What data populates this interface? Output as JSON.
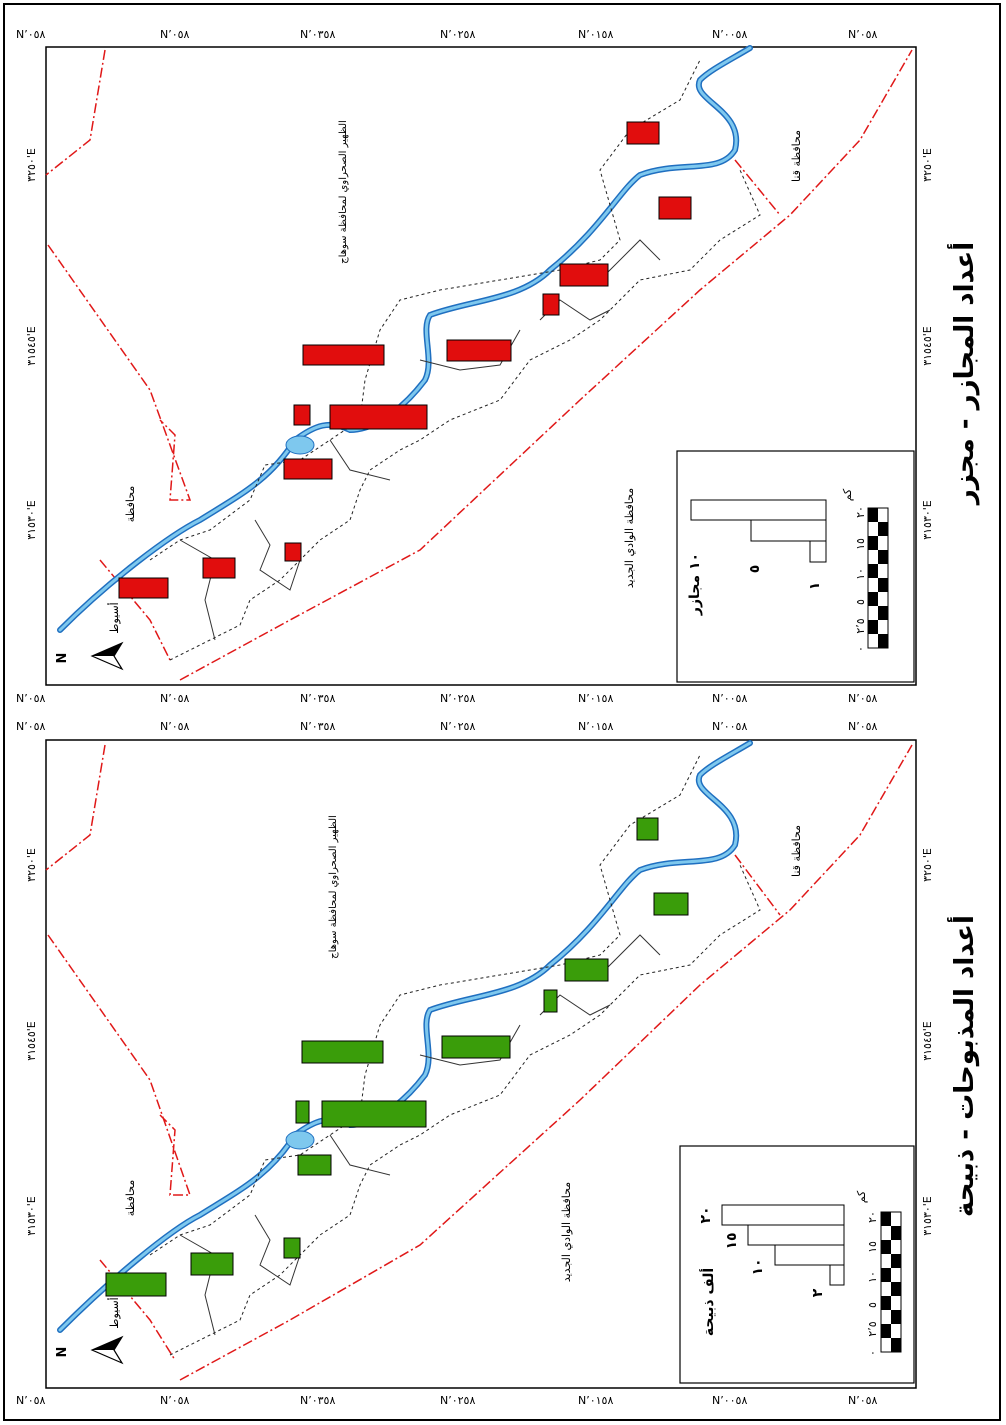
{
  "colors": {
    "nile": "#7ec8ee",
    "nile_edge": "#1f6fc0",
    "top_symbol": "#e10d0d",
    "bottom_symbol": "#3a9d0a",
    "border_red": "#e01818"
  },
  "coordinates": {
    "lat_labels": [
      "N٬٠٥٨",
      "N٬٠٥٨",
      "N٬٠٣٥٨",
      "N٬٠٢٥٨",
      "N٬٠١٥٨",
      "N٬٠٠٥٨",
      "N٬٠٥٨"
    ],
    "lon_labels": [
      "٣٢٥٠'E",
      "٣١٥٤٥'E",
      "٣١٥٣٠'E"
    ]
  },
  "top_map": {
    "title": "أعداد المجازر - مجزر",
    "labels": {
      "assiut": "أسيوط",
      "governorate": "محافظة",
      "desert": "الظهير الصحراوي لمحافظة سوهاج",
      "qena": "محافظة قنا",
      "new_valley": "محافظة الوادي الجديد"
    },
    "north": "N",
    "legend": {
      "unit_label": "١٠ مجازر",
      "values": [
        "٥",
        "١"
      ],
      "scale_unit": "كم",
      "scale_ticks": [
        "٠",
        "٢٬٥",
        "٥",
        "١٠",
        "١٥",
        "٢٠"
      ]
    }
  },
  "bottom_map": {
    "title": "أعداد المذبوحات - ذبيحة",
    "labels": {
      "assiut": "أسيوط",
      "governorate": "محافظة",
      "desert": "الظهير الصحراوي لمحافظة سوهاج",
      "qena": "محافظة قنا",
      "new_valley": "محافظة الوادي الجديد"
    },
    "north": "N",
    "legend": {
      "unit_label": "ألف ذبيحة",
      "values": [
        "٢٠",
        "١٥",
        "١٠",
        "٢"
      ],
      "scale_unit": "كم",
      "scale_ticks": [
        "٠",
        "٢٬٥",
        "٥",
        "١٠",
        "١٥",
        "٢٠"
      ]
    }
  }
}
